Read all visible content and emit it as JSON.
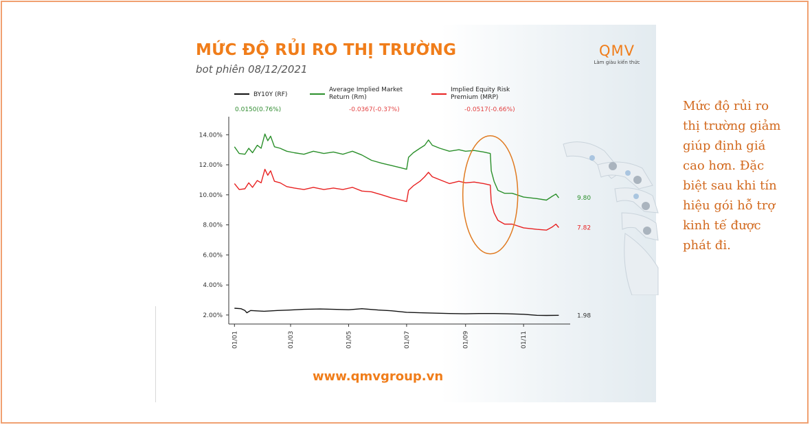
{
  "page": {
    "title": "MỨC ĐỘ RỦI RO THỊ TRƯỜNG",
    "subtitle": "bot phiên 08/12/2021",
    "logo": "QMV",
    "logo_tagline": "Làm giàu kiến thức",
    "url": "www.qmvgroup.vn",
    "note": "Mức độ rủi ro thị trường giảm giúp định giá cao hơn. Đặc biệt sau khi tín hiệu gói hỗ trợ kinh tế được phát đi.",
    "colors": {
      "accent": "#f07d1a",
      "note": "#d2691e",
      "highlight_ellipse": "#e07a20"
    }
  },
  "chart_data": {
    "type": "line",
    "x_tick_labels": [
      "01/01",
      "01/03",
      "01/05",
      "01/07",
      "01/09",
      "01/11"
    ],
    "x_ticks": [
      "2021-01-01",
      "2021-03-01",
      "2021-05-01",
      "2021-07-01",
      "2021-09-01",
      "2021-11-01"
    ],
    "y_tick_labels": [
      "2.00%",
      "4.00%",
      "6.00%",
      "8.00%",
      "10.00%",
      "12.00%",
      "14.00%"
    ],
    "y_ticks": [
      2,
      4,
      6,
      8,
      10,
      12,
      14
    ],
    "ylim": [
      1.4,
      15.2
    ],
    "xlim": [
      "2020-12-26",
      "2021-12-20"
    ],
    "grid": false,
    "legend_position": "top",
    "series": [
      {
        "name": "BY10Y (RF)",
        "color": "#111111",
        "change_text": "0.0150(0.76%)",
        "change_color": "#2e8b2e",
        "end_label": "1.98",
        "end_label_color": "#333333",
        "points": [
          [
            "2021-01-01",
            2.45
          ],
          [
            "2021-01-08",
            2.42
          ],
          [
            "2021-01-12",
            2.3
          ],
          [
            "2021-01-14",
            2.15
          ],
          [
            "2021-01-18",
            2.3
          ],
          [
            "2021-02-01",
            2.25
          ],
          [
            "2021-02-15",
            2.3
          ],
          [
            "2021-03-01",
            2.33
          ],
          [
            "2021-03-15",
            2.38
          ],
          [
            "2021-04-01",
            2.4
          ],
          [
            "2021-04-15",
            2.38
          ],
          [
            "2021-05-01",
            2.35
          ],
          [
            "2021-05-15",
            2.42
          ],
          [
            "2021-06-01",
            2.33
          ],
          [
            "2021-06-15",
            2.28
          ],
          [
            "2021-07-01",
            2.18
          ],
          [
            "2021-07-15",
            2.15
          ],
          [
            "2021-08-01",
            2.12
          ],
          [
            "2021-08-15",
            2.1
          ],
          [
            "2021-09-01",
            2.08
          ],
          [
            "2021-09-15",
            2.1
          ],
          [
            "2021-10-01",
            2.1
          ],
          [
            "2021-10-15",
            2.08
          ],
          [
            "2021-11-01",
            2.05
          ],
          [
            "2021-11-15",
            1.98
          ],
          [
            "2021-11-25",
            1.97
          ],
          [
            "2021-12-08",
            1.98
          ]
        ]
      },
      {
        "name": "Average Implied Market Return (Rm)",
        "color": "#2a8f2a",
        "change_text": "-0.0367(-0.37%)",
        "change_color": "#e34040",
        "end_label": "9.80",
        "end_label_color": "#2a8f2a",
        "points": [
          [
            "2021-01-01",
            13.2
          ],
          [
            "2021-01-06",
            12.75
          ],
          [
            "2021-01-12",
            12.7
          ],
          [
            "2021-01-16",
            13.1
          ],
          [
            "2021-01-20",
            12.8
          ],
          [
            "2021-01-25",
            13.3
          ],
          [
            "2021-01-29",
            13.1
          ],
          [
            "2021-02-02",
            14.05
          ],
          [
            "2021-02-05",
            13.6
          ],
          [
            "2021-02-08",
            13.9
          ],
          [
            "2021-02-12",
            13.2
          ],
          [
            "2021-02-18",
            13.1
          ],
          [
            "2021-02-25",
            12.9
          ],
          [
            "2021-03-05",
            12.8
          ],
          [
            "2021-03-15",
            12.7
          ],
          [
            "2021-03-25",
            12.9
          ],
          [
            "2021-04-05",
            12.75
          ],
          [
            "2021-04-15",
            12.85
          ],
          [
            "2021-04-25",
            12.7
          ],
          [
            "2021-05-05",
            12.9
          ],
          [
            "2021-05-15",
            12.65
          ],
          [
            "2021-05-25",
            12.3
          ],
          [
            "2021-06-05",
            12.1
          ],
          [
            "2021-06-15",
            11.95
          ],
          [
            "2021-06-25",
            11.8
          ],
          [
            "2021-07-01",
            11.7
          ],
          [
            "2021-07-03",
            12.5
          ],
          [
            "2021-07-08",
            12.8
          ],
          [
            "2021-07-15",
            13.1
          ],
          [
            "2021-07-20",
            13.3
          ],
          [
            "2021-07-24",
            13.65
          ],
          [
            "2021-07-28",
            13.3
          ],
          [
            "2021-08-05",
            13.1
          ],
          [
            "2021-08-15",
            12.9
          ],
          [
            "2021-08-25",
            13.0
          ],
          [
            "2021-09-01",
            12.9
          ],
          [
            "2021-09-10",
            12.95
          ],
          [
            "2021-09-20",
            12.85
          ],
          [
            "2021-09-27",
            12.75
          ],
          [
            "2021-09-28",
            11.6
          ],
          [
            "2021-10-01",
            10.9
          ],
          [
            "2021-10-05",
            10.3
          ],
          [
            "2021-10-12",
            10.1
          ],
          [
            "2021-10-20",
            10.1
          ],
          [
            "2021-11-01",
            9.85
          ],
          [
            "2021-11-15",
            9.75
          ],
          [
            "2021-11-25",
            9.65
          ],
          [
            "2021-12-01",
            9.9
          ],
          [
            "2021-12-05",
            10.05
          ],
          [
            "2021-12-08",
            9.8
          ]
        ]
      },
      {
        "name": "Implied Equity Risk Premium (MRP)",
        "color": "#e82020",
        "change_text": "-0.0517(-0.66%)",
        "change_color": "#e34040",
        "end_label": "7.82",
        "end_label_color": "#e82020",
        "points": [
          [
            "2021-01-01",
            10.75
          ],
          [
            "2021-01-06",
            10.35
          ],
          [
            "2021-01-12",
            10.4
          ],
          [
            "2021-01-16",
            10.8
          ],
          [
            "2021-01-20",
            10.5
          ],
          [
            "2021-01-25",
            10.95
          ],
          [
            "2021-01-29",
            10.8
          ],
          [
            "2021-02-02",
            11.7
          ],
          [
            "2021-02-05",
            11.3
          ],
          [
            "2021-02-08",
            11.6
          ],
          [
            "2021-02-12",
            10.9
          ],
          [
            "2021-02-18",
            10.8
          ],
          [
            "2021-02-25",
            10.55
          ],
          [
            "2021-03-05",
            10.45
          ],
          [
            "2021-03-15",
            10.35
          ],
          [
            "2021-03-25",
            10.5
          ],
          [
            "2021-04-05",
            10.35
          ],
          [
            "2021-04-15",
            10.45
          ],
          [
            "2021-04-25",
            10.35
          ],
          [
            "2021-05-05",
            10.5
          ],
          [
            "2021-05-15",
            10.25
          ],
          [
            "2021-05-25",
            10.2
          ],
          [
            "2021-06-05",
            10.0
          ],
          [
            "2021-06-15",
            9.8
          ],
          [
            "2021-06-25",
            9.65
          ],
          [
            "2021-07-01",
            9.55
          ],
          [
            "2021-07-03",
            10.3
          ],
          [
            "2021-07-08",
            10.6
          ],
          [
            "2021-07-15",
            10.9
          ],
          [
            "2021-07-20",
            11.2
          ],
          [
            "2021-07-24",
            11.5
          ],
          [
            "2021-07-28",
            11.2
          ],
          [
            "2021-08-05",
            11.0
          ],
          [
            "2021-08-15",
            10.75
          ],
          [
            "2021-08-25",
            10.9
          ],
          [
            "2021-09-01",
            10.8
          ],
          [
            "2021-09-10",
            10.85
          ],
          [
            "2021-09-20",
            10.75
          ],
          [
            "2021-09-27",
            10.65
          ],
          [
            "2021-09-28",
            9.5
          ],
          [
            "2021-10-01",
            8.8
          ],
          [
            "2021-10-05",
            8.3
          ],
          [
            "2021-10-12",
            8.05
          ],
          [
            "2021-10-20",
            8.05
          ],
          [
            "2021-11-01",
            7.8
          ],
          [
            "2021-11-15",
            7.7
          ],
          [
            "2021-11-25",
            7.65
          ],
          [
            "2021-12-01",
            7.85
          ],
          [
            "2021-12-05",
            8.05
          ],
          [
            "2021-12-08",
            7.82
          ]
        ]
      }
    ]
  }
}
